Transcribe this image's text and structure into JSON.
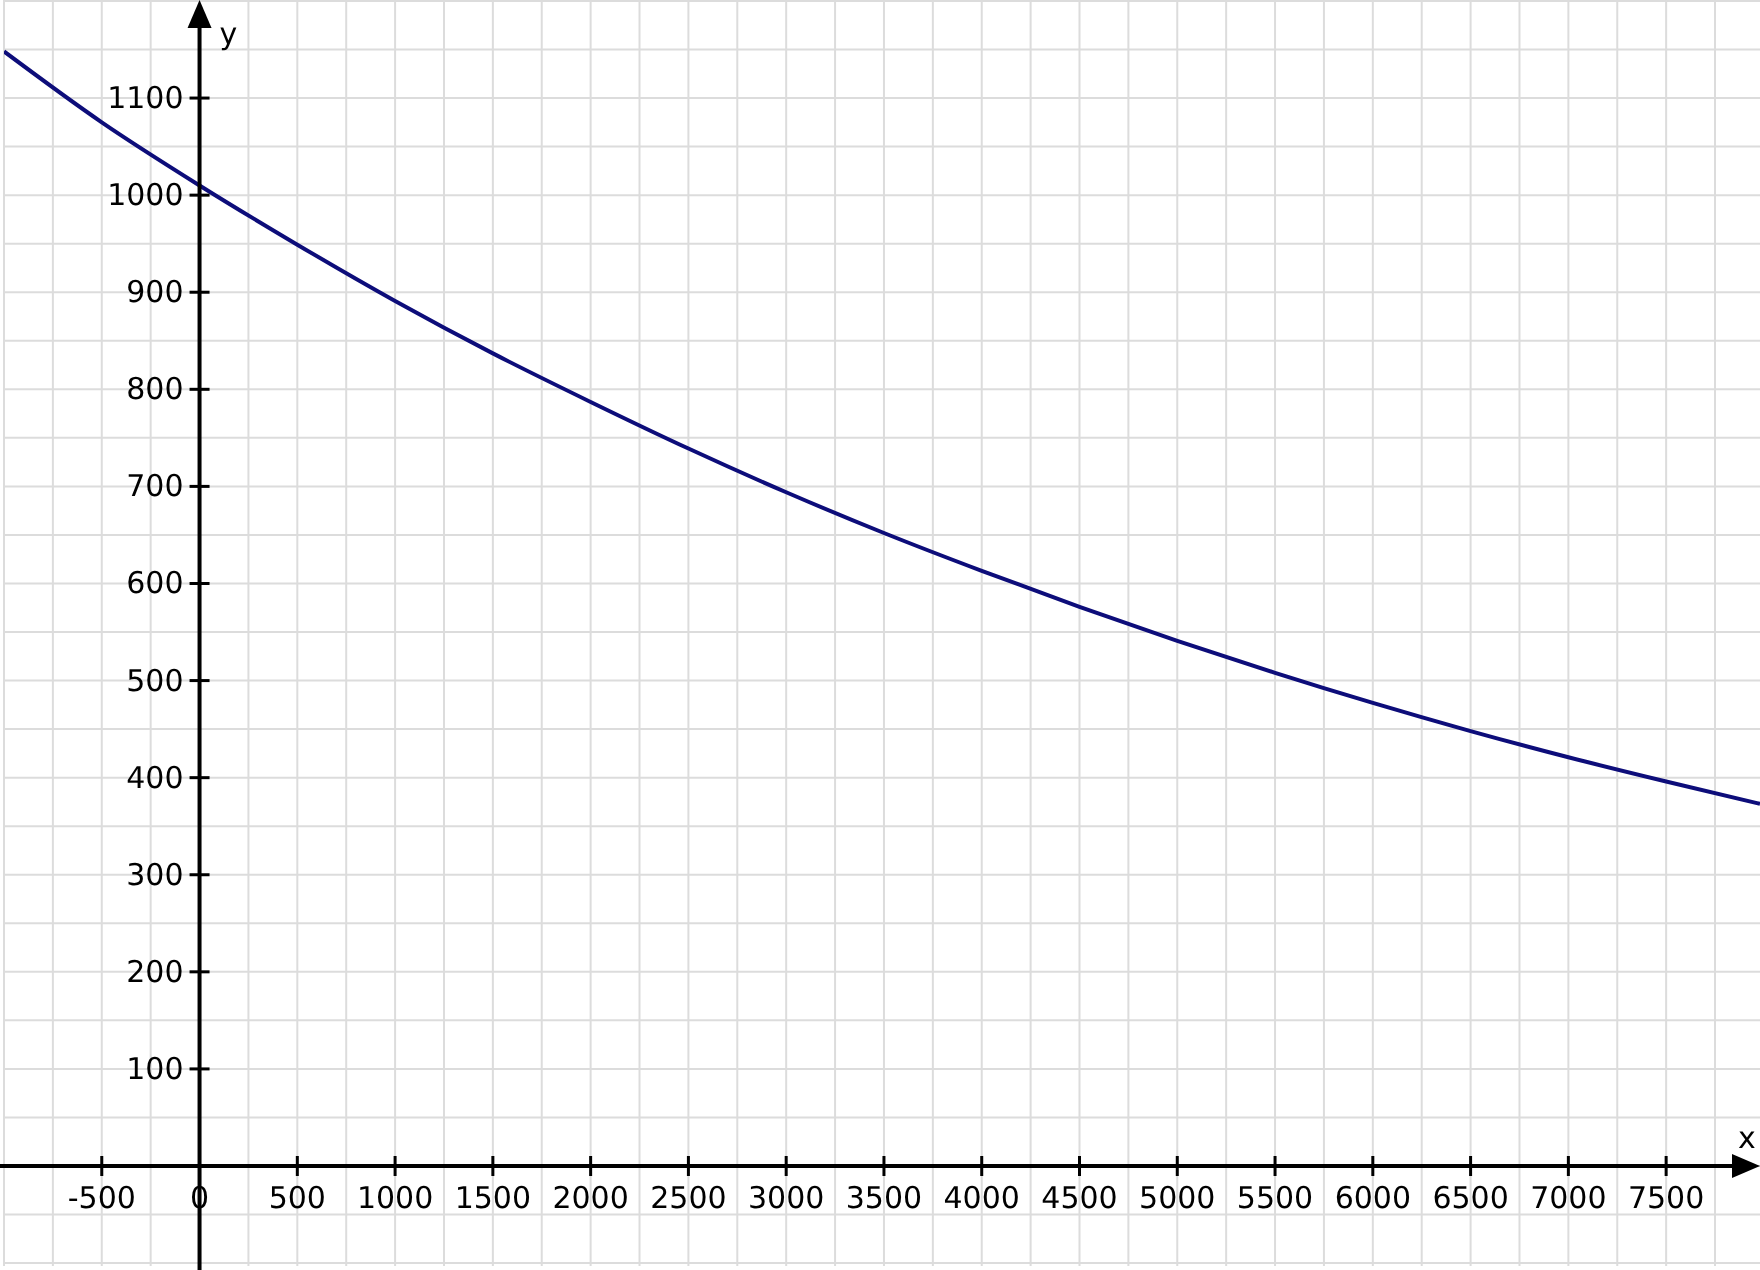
{
  "chart_data": {
    "type": "line",
    "xlabel": "x",
    "ylabel": "y",
    "x": [
      -1000,
      -500,
      0,
      500,
      1000,
      1500,
      2000,
      2500,
      3000,
      3500,
      4000,
      4500,
      5000,
      5500,
      6000,
      6500,
      7000,
      7500,
      7980
    ],
    "series": [
      {
        "color": "#0d0d7a",
        "values": [
          1148,
          1075,
          1010,
          949,
          891,
          837,
          787,
          739,
          694,
          652,
          613,
          576,
          541,
          508,
          477,
          448,
          421,
          396,
          373
        ]
      }
    ],
    "xlim": [
      -1000,
      7980
    ],
    "ylim": [
      -103,
      1201
    ],
    "xticks": [
      -500,
      0,
      500,
      1000,
      1500,
      2000,
      2500,
      3000,
      3500,
      4000,
      4500,
      5000,
      5500,
      6000,
      6500,
      7000,
      7500
    ],
    "yticks": [
      100,
      200,
      300,
      400,
      500,
      600,
      700,
      800,
      900,
      1000,
      1100
    ],
    "grid": true
  }
}
